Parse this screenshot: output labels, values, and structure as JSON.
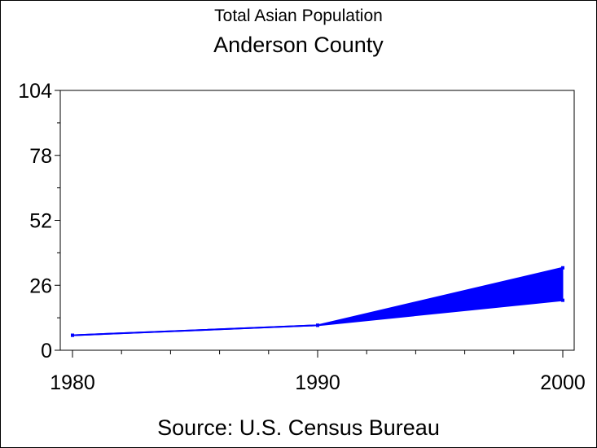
{
  "chart_data": {
    "type": "area",
    "title": "Total Asian Population",
    "subtitle": "Anderson County",
    "footer": "Source: U.S. Census Bureau",
    "xlabel": "",
    "ylabel": "",
    "x": [
      1980,
      1990,
      2000
    ],
    "xlim": [
      1980,
      2000
    ],
    "ylim": [
      0,
      104
    ],
    "yticks": [
      0,
      26,
      52,
      78,
      104
    ],
    "xticks": [
      1980,
      1990,
      2000
    ],
    "series": [
      {
        "values": [
          6,
          10,
          33
        ]
      },
      {
        "values": [
          6,
          10,
          20
        ]
      }
    ],
    "grid": false,
    "legend": "none",
    "fill_color": "#0000ff",
    "line_color": "#0000ff"
  }
}
